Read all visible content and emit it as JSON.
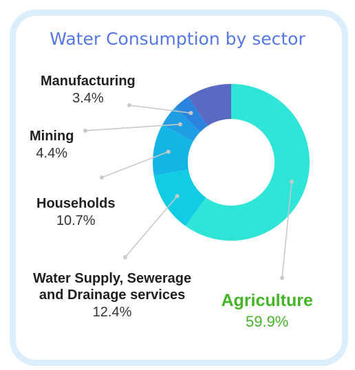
{
  "title": "Water Consumption by sector",
  "chart_data": {
    "type": "pie",
    "variant": "donut",
    "title": "Water Consumption by sector",
    "slices": [
      {
        "label": "Agriculture",
        "name_lines": [
          "Agriculture"
        ],
        "value": 59.9,
        "value_label": "59.9%",
        "color": "#2ee5d8"
      },
      {
        "label": "Water Supply, Sewerage and Drainage services",
        "name_lines": [
          "Water Supply, Sewerage",
          "and Drainage services"
        ],
        "value": 12.4,
        "value_label": "12.4%",
        "color": "#10cde3"
      },
      {
        "label": "Households",
        "name_lines": [
          "Households"
        ],
        "value": 10.7,
        "value_label": "10.7%",
        "color": "#14b5e4"
      },
      {
        "label": "Mining",
        "name_lines": [
          "Mining"
        ],
        "value": 4.4,
        "value_label": "4.4%",
        "color": "#1f9ee4"
      },
      {
        "label": "Manufacturing",
        "name_lines": [
          "Manufacturing"
        ],
        "value": 3.4,
        "value_label": "3.4%",
        "color": "#2a84de"
      },
      {
        "label": "",
        "name_lines": [],
        "value": 9.2,
        "value_label": "",
        "color": "#5a69c2"
      }
    ],
    "legend": "none",
    "label_color_highlight": "#43b526"
  }
}
